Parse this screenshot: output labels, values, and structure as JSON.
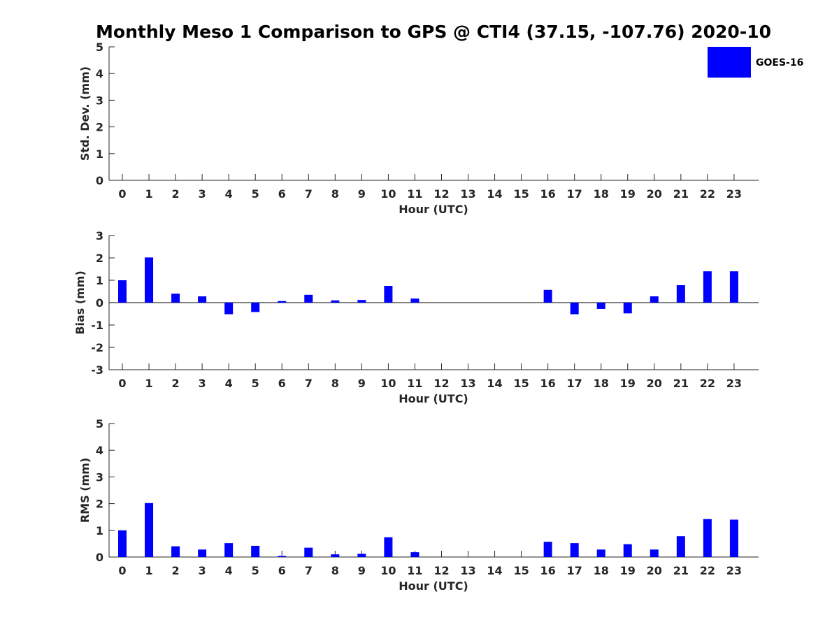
{
  "chart_data": {
    "title": "Monthly Meso 1 Comparison to GPS @ CTI4 (37.15, -107.76) 2020-10",
    "legend": {
      "label": "GOES-16",
      "color": "#0000ff",
      "placement": "top-right"
    },
    "bar_color": "#0000ff",
    "panels": [
      {
        "type": "bar",
        "ylabel": "Std. Dev. (mm)",
        "xlabel": "Hour (UTC)",
        "ylim": [
          0,
          5
        ],
        "yticks": [
          0,
          1,
          2,
          3,
          4,
          5
        ],
        "categories": [
          "0",
          "1",
          "2",
          "3",
          "4",
          "5",
          "6",
          "7",
          "8",
          "9",
          "10",
          "11",
          "12",
          "13",
          "14",
          "15",
          "16",
          "17",
          "18",
          "19",
          "20",
          "21",
          "22",
          "23"
        ],
        "values": [
          0,
          0,
          0,
          0,
          0,
          0,
          0,
          0,
          0,
          0,
          0,
          0,
          0,
          0,
          0,
          0,
          0,
          0,
          0,
          0,
          0,
          0,
          0,
          0
        ]
      },
      {
        "type": "bar",
        "ylabel": "Bias (mm)",
        "xlabel": "Hour (UTC)",
        "ylim": [
          -3,
          3
        ],
        "yticks": [
          -3,
          -2,
          -1,
          0,
          1,
          2,
          3
        ],
        "zero_line": true,
        "categories": [
          "0",
          "1",
          "2",
          "3",
          "4",
          "5",
          "6",
          "7",
          "8",
          "9",
          "10",
          "11",
          "12",
          "13",
          "14",
          "15",
          "16",
          "17",
          "18",
          "19",
          "20",
          "21",
          "22",
          "23"
        ],
        "values": [
          1.0,
          2.02,
          0.4,
          0.28,
          -0.52,
          -0.42,
          0.07,
          0.35,
          0.1,
          0.12,
          0.75,
          0.18,
          null,
          null,
          null,
          null,
          0.57,
          -0.52,
          -0.28,
          -0.48,
          0.28,
          0.78,
          1.4,
          1.4
        ]
      },
      {
        "type": "bar",
        "ylabel": "RMS (mm)",
        "xlabel": "Hour (UTC)",
        "ylim": [
          0,
          5
        ],
        "yticks": [
          0,
          1,
          2,
          3,
          4,
          5
        ],
        "categories": [
          "0",
          "1",
          "2",
          "3",
          "4",
          "5",
          "6",
          "7",
          "8",
          "9",
          "10",
          "11",
          "12",
          "13",
          "14",
          "15",
          "16",
          "17",
          "18",
          "19",
          "20",
          "21",
          "22",
          "23"
        ],
        "values": [
          1.0,
          2.02,
          0.4,
          0.28,
          0.52,
          0.42,
          0.04,
          0.35,
          0.1,
          0.12,
          0.74,
          0.18,
          null,
          null,
          null,
          null,
          0.57,
          0.52,
          0.28,
          0.48,
          0.28,
          0.78,
          1.42,
          1.4
        ]
      }
    ]
  }
}
